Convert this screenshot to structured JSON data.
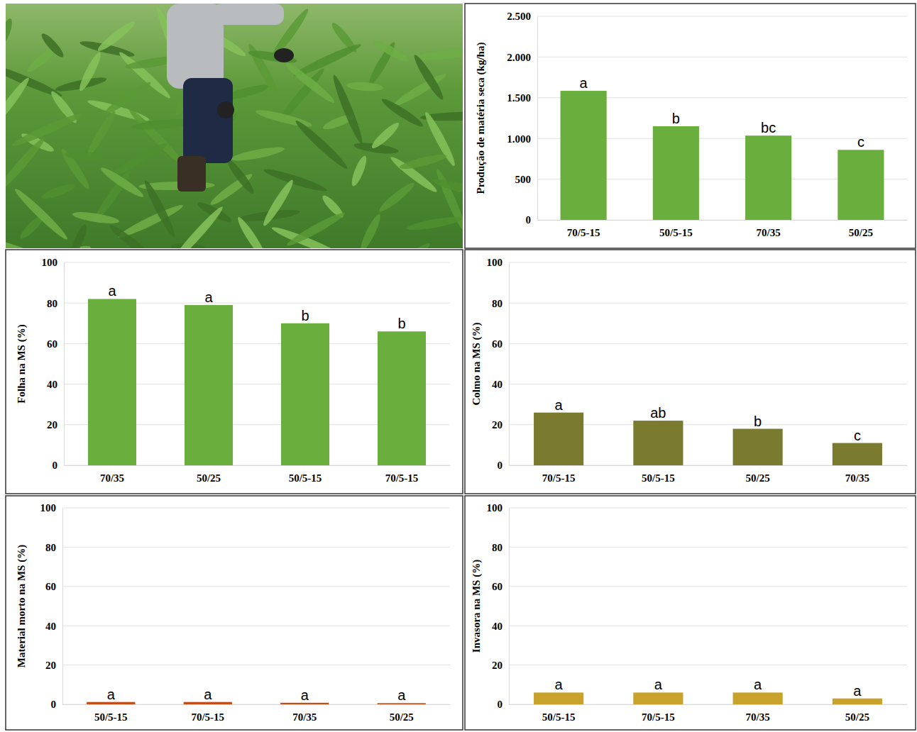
{
  "chart_data": [
    {
      "type": "bar",
      "y_label": "Produção de matéria seca (kg/ha)",
      "categories": [
        "70/5-15",
        "50/5-15",
        "70/35",
        "50/25"
      ],
      "values": [
        1585,
        1150,
        1035,
        860
      ],
      "annotations": [
        "a",
        "b",
        "bc",
        "c"
      ],
      "color": "#6aae3e",
      "ylim": [
        0,
        2500
      ],
      "yticks": [
        0,
        500,
        {
          "value": 1000,
          "label": "1.000"
        },
        {
          "value": 1500,
          "label": "1.500"
        },
        {
          "value": 2000,
          "label": "2.000"
        },
        {
          "value": 2500,
          "label": "2.500"
        }
      ],
      "grid": true
    },
    {
      "type": "bar",
      "y_label": "Folha na MS (%)",
      "categories": [
        "70/35",
        "50/25",
        "50/5-15",
        "70/5-15"
      ],
      "values": [
        82,
        79,
        70,
        66
      ],
      "annotations": [
        "a",
        "a",
        "b",
        "b"
      ],
      "color": "#6aae3e",
      "ylim": [
        0,
        100
      ],
      "yticks": [
        0,
        20,
        40,
        60,
        80,
        100
      ],
      "grid": true
    },
    {
      "type": "bar",
      "y_label": "Colmo na MS (%)",
      "categories": [
        "70/5-15",
        "50/5-15",
        "50/25",
        "70/35"
      ],
      "values": [
        26,
        22,
        18,
        11
      ],
      "annotations": [
        "a",
        "ab",
        "b",
        "c"
      ],
      "color": "#7b7b2f",
      "ylim": [
        0,
        100
      ],
      "yticks": [
        0,
        20,
        40,
        60,
        80,
        100
      ],
      "grid": true
    },
    {
      "type": "bar",
      "y_label": "Material morto na MS (%)",
      "categories": [
        "50/5-15",
        "70/5-15",
        "70/35",
        "50/25"
      ],
      "values": [
        1.2,
        1.2,
        0.8,
        0.6
      ],
      "annotations": [
        "a",
        "a",
        "a",
        "a"
      ],
      "color": "#c0501a",
      "ylim": [
        0,
        100
      ],
      "yticks": [
        0,
        20,
        40,
        60,
        80,
        100
      ],
      "grid": true
    },
    {
      "type": "bar",
      "y_label": "Invasora na MS (%)",
      "categories": [
        "50/5-15",
        "70/5-15",
        "70/35",
        "50/25"
      ],
      "values": [
        6,
        6,
        6,
        3
      ],
      "annotations": [
        "a",
        "a",
        "a",
        "a"
      ],
      "color": "#c8a22a",
      "ylim": [
        0,
        100
      ],
      "yticks": [
        0,
        20,
        40,
        60,
        80,
        100
      ],
      "grid": true
    }
  ]
}
